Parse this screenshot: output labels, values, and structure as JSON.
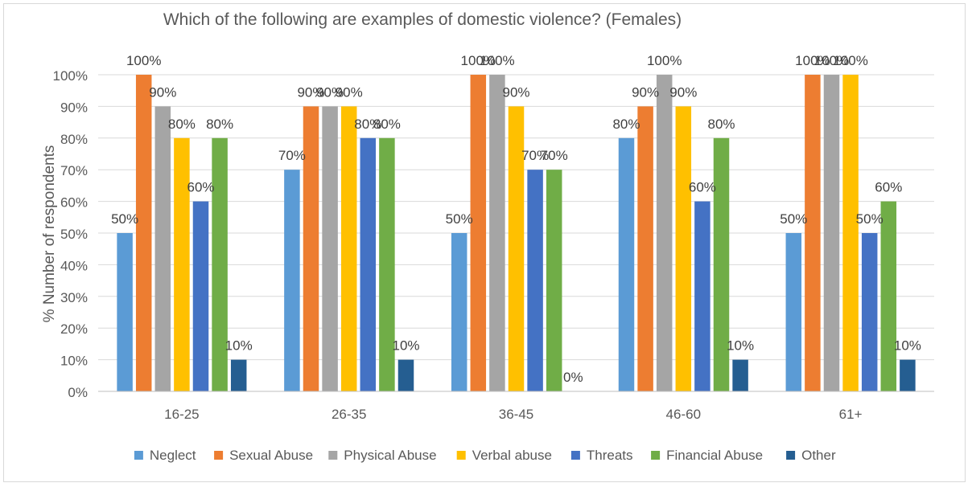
{
  "chart_data": {
    "type": "bar",
    "title": "Which of the following are examples of domestic violence? (Females)",
    "xlabel": "",
    "ylabel": "% Number of respondents",
    "ylim": [
      0,
      100
    ],
    "yticks": [
      0,
      10,
      20,
      30,
      40,
      50,
      60,
      70,
      80,
      90,
      100
    ],
    "ytick_suffix": "%",
    "grid": true,
    "legend_position": "bottom",
    "categories": [
      "16-25",
      "26-35",
      "36-45",
      "46-60",
      "61+"
    ],
    "series": [
      {
        "name": "Neglect",
        "color": "#5b9bd5",
        "values": [
          50,
          70,
          50,
          80,
          50
        ]
      },
      {
        "name": "Sexual Abuse",
        "color": "#ed7d31",
        "values": [
          100,
          90,
          100,
          90,
          100
        ]
      },
      {
        "name": "Physical Abuse",
        "color": "#a5a5a5",
        "values": [
          90,
          90,
          100,
          100,
          100
        ]
      },
      {
        "name": "Verbal abuse",
        "color": "#ffc000",
        "values": [
          80,
          90,
          90,
          90,
          100
        ]
      },
      {
        "name": "Threats",
        "color": "#4472c4",
        "values": [
          60,
          80,
          70,
          60,
          50
        ]
      },
      {
        "name": "Financial Abuse",
        "color": "#70ad47",
        "values": [
          80,
          80,
          70,
          80,
          60
        ]
      },
      {
        "name": "Other",
        "color": "#255e91",
        "values": [
          10,
          10,
          0,
          10,
          10
        ]
      }
    ]
  }
}
